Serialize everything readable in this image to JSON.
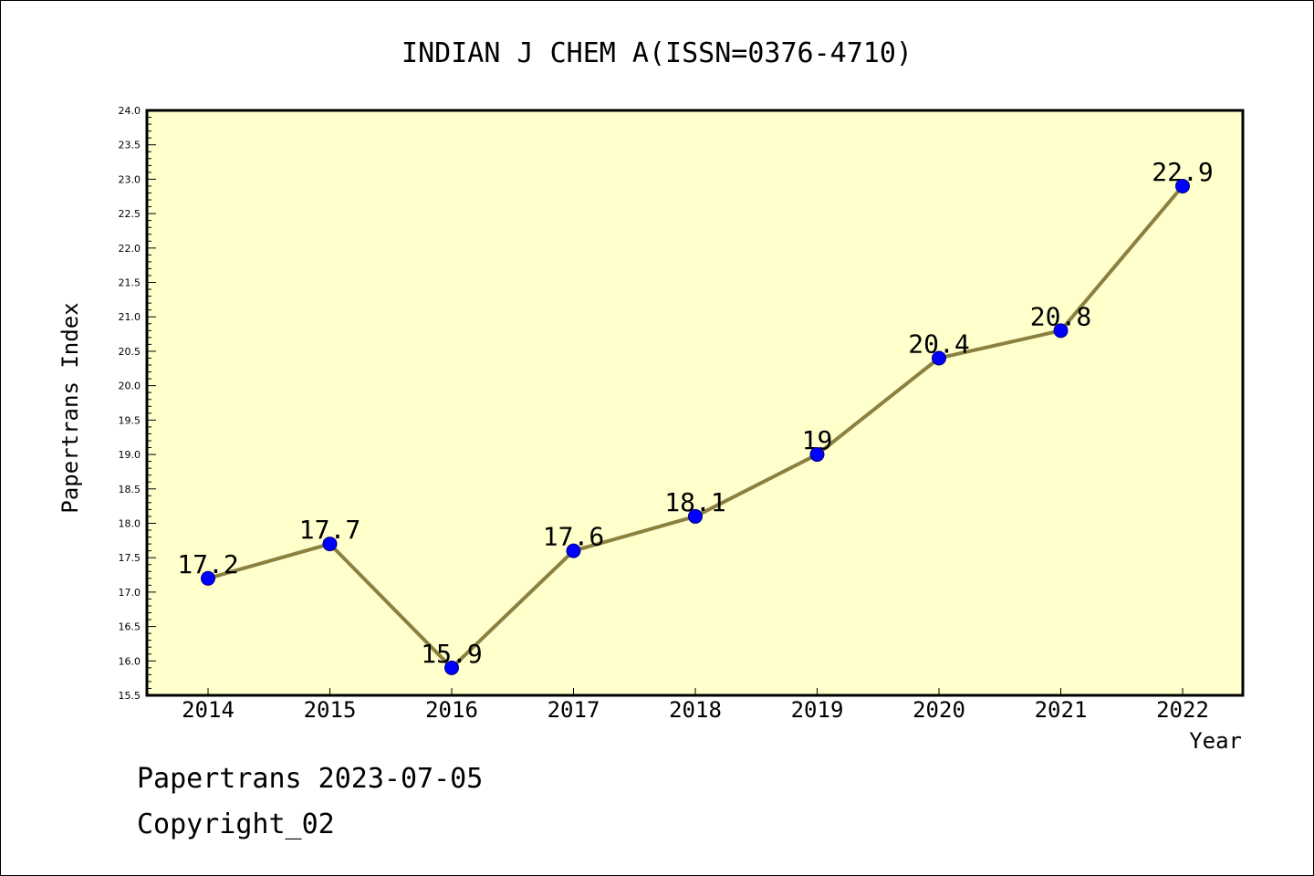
{
  "chart_data": {
    "type": "line",
    "title": "INDIAN J CHEM A(ISSN=0376-4710)",
    "xlabel": "Year",
    "ylabel": "Papertrans Index",
    "categories": [
      "2014",
      "2015",
      "2016",
      "2017",
      "2018",
      "2019",
      "2020",
      "2021",
      "2022"
    ],
    "values": [
      17.2,
      17.7,
      15.9,
      17.6,
      18.1,
      19,
      20.4,
      20.8,
      22.9
    ],
    "data_labels": [
      "17.2",
      "17.7",
      "15.9",
      "17.6",
      "18.1",
      "19",
      "20.4",
      "20.8",
      "22.9"
    ],
    "ylim": [
      15.5,
      24.0
    ],
    "y_ticks": [
      "15.5",
      "16.0",
      "16.5",
      "17.0",
      "17.5",
      "18.0",
      "18.5",
      "19.0",
      "19.5",
      "20.0",
      "20.5",
      "21.0",
      "21.5",
      "22.0",
      "22.5",
      "23.0",
      "23.5",
      "24.0"
    ],
    "grid": false,
    "colors": {
      "plot_background": "#ffffcc",
      "line": "#8b8040",
      "marker": "#0000ff",
      "marker_edge": "#000080"
    }
  },
  "footer": {
    "line1": "Papertrans 2023-07-05",
    "line2": "Copyright_02"
  }
}
